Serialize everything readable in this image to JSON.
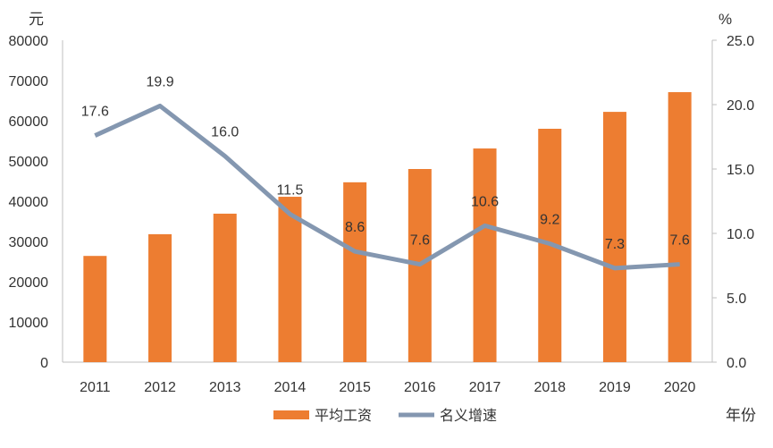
{
  "chart_data": {
    "type": "bar+line",
    "categories": [
      "2011",
      "2012",
      "2013",
      "2014",
      "2015",
      "2016",
      "2017",
      "2018",
      "2019",
      "2020"
    ],
    "series": [
      {
        "name": "平均工资",
        "type": "bar",
        "axis": "left",
        "color": "#ED7D31",
        "values": [
          26400,
          31800,
          36900,
          41100,
          44700,
          48000,
          53100,
          58000,
          62200,
          67100
        ]
      },
      {
        "name": "名义增速",
        "type": "line",
        "axis": "right",
        "color": "#8497B0",
        "values": [
          17.6,
          19.9,
          16.0,
          11.5,
          8.6,
          7.6,
          10.6,
          9.2,
          7.3,
          7.6
        ],
        "labels": [
          "17.6",
          "19.9",
          "16.0",
          "11.5",
          "8.6",
          "7.6",
          "10.6",
          "9.2",
          "7.3",
          "7.6"
        ]
      }
    ],
    "left_axis": {
      "unit": "元",
      "range": [
        0,
        80000
      ],
      "ticks": [
        "0",
        "10000",
        "20000",
        "30000",
        "40000",
        "50000",
        "60000",
        "70000",
        "80000"
      ]
    },
    "right_axis": {
      "unit": "%",
      "range": [
        0,
        25
      ],
      "ticks": [
        "0.0",
        "5.0",
        "10.0",
        "15.0",
        "20.0",
        "25.0"
      ]
    },
    "xlabel": "年份",
    "grid": false,
    "legend": "bottom"
  }
}
